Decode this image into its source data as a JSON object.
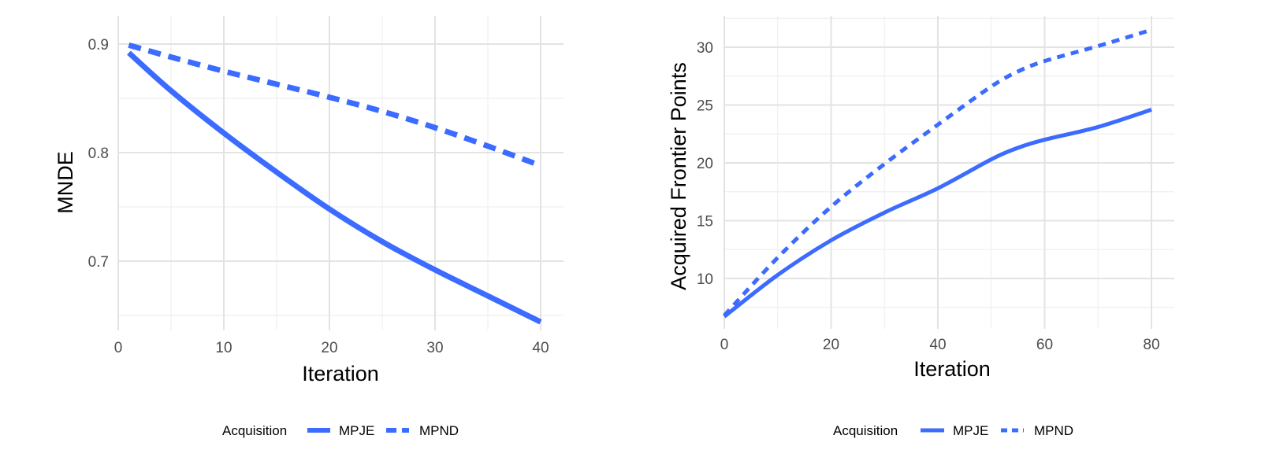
{
  "chart_data": [
    {
      "type": "line",
      "xlabel": "Iteration",
      "ylabel": "MNDE",
      "xlim": [
        0,
        40
      ],
      "ylim": [
        0.65,
        0.9
      ],
      "x_ticks": [
        0,
        10,
        20,
        30,
        40
      ],
      "y_ticks": [
        0.7,
        0.8,
        0.9
      ],
      "x_tick_labels": [
        "0",
        "10",
        "20",
        "30",
        "40"
      ],
      "y_tick_labels": [
        "0.7",
        "0.8",
        "0.9"
      ],
      "grid": true,
      "legend": {
        "title": "Acquisition",
        "position": "bottom"
      },
      "series": [
        {
          "name": "MPJE",
          "style": "solid",
          "color": "#3b6bff",
          "x": [
            1,
            5,
            10,
            15,
            20,
            25,
            30,
            35,
            40
          ],
          "y": [
            0.892,
            0.857,
            0.818,
            0.782,
            0.748,
            0.718,
            0.692,
            0.668,
            0.644
          ]
        },
        {
          "name": "MPND",
          "style": "dashed",
          "color": "#3b6bff",
          "x": [
            1,
            5,
            10,
            15,
            20,
            25,
            30,
            35,
            40
          ],
          "y": [
            0.899,
            0.888,
            0.875,
            0.863,
            0.851,
            0.838,
            0.823,
            0.806,
            0.788
          ]
        }
      ]
    },
    {
      "type": "line",
      "xlabel": "Iteration",
      "ylabel": "Acquired Frontier Points",
      "xlim": [
        0,
        80
      ],
      "ylim": [
        7,
        32
      ],
      "x_ticks": [
        0,
        20,
        40,
        60,
        80
      ],
      "y_ticks": [
        10,
        15,
        20,
        25,
        30
      ],
      "x_tick_labels": [
        "0",
        "20",
        "40",
        "60",
        "80"
      ],
      "y_tick_labels": [
        "10",
        "15",
        "20",
        "25",
        "30"
      ],
      "grid": true,
      "legend": {
        "title": "Acquisition",
        "position": "bottom"
      },
      "series": [
        {
          "name": "MPJE",
          "style": "solid",
          "color": "#3b6bff",
          "x": [
            0,
            10,
            20,
            30,
            40,
            50,
            55,
            60,
            70,
            80
          ],
          "y": [
            6.7,
            10.3,
            13.3,
            15.7,
            17.8,
            20.3,
            21.3,
            22.0,
            23.1,
            24.6
          ]
        },
        {
          "name": "MPND",
          "style": "dashed",
          "color": "#3b6bff",
          "x": [
            0,
            10,
            20,
            30,
            40,
            50,
            55,
            60,
            70,
            80
          ],
          "y": [
            6.8,
            11.8,
            16.2,
            19.9,
            23.3,
            26.6,
            27.9,
            28.8,
            30.1,
            31.5
          ]
        }
      ]
    }
  ]
}
